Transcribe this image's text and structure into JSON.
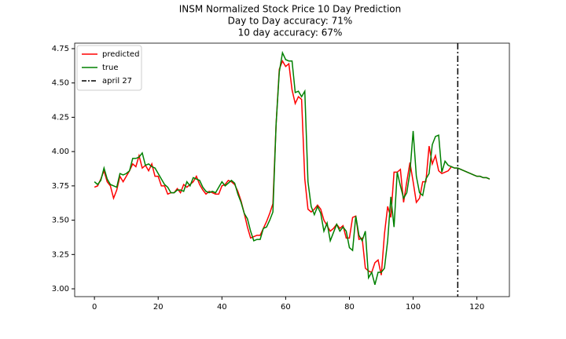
{
  "chart_data": {
    "type": "line",
    "title": [
      "INSM Normalized Stock Price 10 Day Prediction",
      "Day to Day accuracy: 71%",
      "10 day accuracy: 67%"
    ],
    "x": [
      0,
      1,
      2,
      3,
      4,
      5,
      6,
      7,
      8,
      9,
      10,
      11,
      12,
      13,
      14,
      15,
      16,
      17,
      18,
      19,
      20,
      21,
      22,
      23,
      24,
      25,
      26,
      27,
      28,
      29,
      30,
      31,
      32,
      33,
      34,
      35,
      36,
      37,
      38,
      39,
      40,
      41,
      42,
      43,
      44,
      45,
      46,
      47,
      48,
      49,
      50,
      51,
      52,
      53,
      54,
      55,
      56,
      57,
      58,
      59,
      60,
      61,
      62,
      63,
      64,
      65,
      66,
      67,
      68,
      69,
      70,
      71,
      72,
      73,
      74,
      75,
      76,
      77,
      78,
      79,
      80,
      81,
      82,
      83,
      84,
      85,
      86,
      87,
      88,
      89,
      90,
      91,
      92,
      93,
      94,
      95,
      96,
      97,
      98,
      99,
      100,
      101,
      102,
      103,
      104,
      105,
      106,
      107,
      108,
      109,
      110,
      111,
      112,
      113,
      114,
      115,
      116,
      117,
      118,
      119,
      120,
      121,
      122,
      123,
      124
    ],
    "series": [
      {
        "name": "predicted",
        "color": "#ff0000",
        "values": [
          3.74,
          3.75,
          3.8,
          3.86,
          3.78,
          3.75,
          3.66,
          3.72,
          3.82,
          3.78,
          3.82,
          3.86,
          3.91,
          3.89,
          3.97,
          3.88,
          3.9,
          3.86,
          3.91,
          3.82,
          3.82,
          3.75,
          3.75,
          3.69,
          3.7,
          3.7,
          3.73,
          3.7,
          3.76,
          3.74,
          3.76,
          3.78,
          3.82,
          3.76,
          3.72,
          3.69,
          3.71,
          3.7,
          3.69,
          3.69,
          3.75,
          3.76,
          3.79,
          3.78,
          3.76,
          3.71,
          3.64,
          3.55,
          3.45,
          3.37,
          3.38,
          3.39,
          3.39,
          3.44,
          3.49,
          3.55,
          3.62,
          4.2,
          4.6,
          4.66,
          4.62,
          4.64,
          4.45,
          4.35,
          4.4,
          4.38,
          3.8,
          3.58,
          3.56,
          3.58,
          3.61,
          3.58,
          3.5,
          3.46,
          3.42,
          3.44,
          3.47,
          3.44,
          3.46,
          3.37,
          3.37,
          3.52,
          3.53,
          3.36,
          3.37,
          3.15,
          3.13,
          3.12,
          3.19,
          3.21,
          3.1,
          3.4,
          3.6,
          3.52,
          3.85,
          3.85,
          3.87,
          3.63,
          3.78,
          3.92,
          3.78,
          3.63,
          3.66,
          3.78,
          3.78,
          4.04,
          3.91,
          3.97,
          3.86,
          3.84,
          3.85,
          3.86,
          3.89,
          3.88,
          3.88,
          3.87,
          3.86,
          3.85,
          3.84,
          3.83,
          3.82,
          3.82,
          3.81,
          3.81,
          3.8
        ]
      },
      {
        "name": "true",
        "color": "#008000",
        "values": [
          3.78,
          3.76,
          3.79,
          3.88,
          3.8,
          3.76,
          3.75,
          3.74,
          3.84,
          3.83,
          3.84,
          3.86,
          3.95,
          3.95,
          3.96,
          3.99,
          3.9,
          3.91,
          3.89,
          3.88,
          3.84,
          3.8,
          3.76,
          3.74,
          3.7,
          3.7,
          3.72,
          3.72,
          3.71,
          3.78,
          3.75,
          3.81,
          3.8,
          3.79,
          3.74,
          3.71,
          3.7,
          3.71,
          3.7,
          3.74,
          3.78,
          3.75,
          3.77,
          3.79,
          3.77,
          3.69,
          3.63,
          3.55,
          3.51,
          3.42,
          3.35,
          3.36,
          3.36,
          3.44,
          3.45,
          3.5,
          3.56,
          4.2,
          4.58,
          4.72,
          4.67,
          4.66,
          4.66,
          4.43,
          4.44,
          4.4,
          4.44,
          3.78,
          3.6,
          3.54,
          3.6,
          3.55,
          3.42,
          3.48,
          3.35,
          3.41,
          3.47,
          3.42,
          3.45,
          3.42,
          3.3,
          3.28,
          3.53,
          3.39,
          3.35,
          3.42,
          3.08,
          3.12,
          3.03,
          3.12,
          3.12,
          3.15,
          3.35,
          3.67,
          3.45,
          3.85,
          3.75,
          3.66,
          3.7,
          3.85,
          4.15,
          3.82,
          3.7,
          3.68,
          3.8,
          3.84,
          4.05,
          4.11,
          4.12,
          3.85,
          3.93,
          3.9,
          3.89,
          3.88,
          3.88,
          3.87,
          3.86,
          3.85,
          3.84,
          3.83,
          3.82,
          3.82,
          3.81,
          3.81,
          3.8
        ]
      }
    ],
    "vline": {
      "x": 114,
      "label": "april 27",
      "color": "#000000"
    },
    "xlim": [
      -6.2,
      130.2
    ],
    "xticks": [
      0,
      20,
      40,
      60,
      80,
      100,
      120
    ],
    "ylim": [
      2.943,
      4.79
    ],
    "yticks": [
      {
        "value": 3,
        "label": "3.00"
      },
      3.25,
      {
        "value": 3.5,
        "label": "3.50"
      },
      3.75,
      {
        "value": 4,
        "label": "4.00"
      },
      4.25,
      {
        "value": 4.5,
        "label": "4.50"
      },
      4.75
    ],
    "legend": "upper left"
  }
}
